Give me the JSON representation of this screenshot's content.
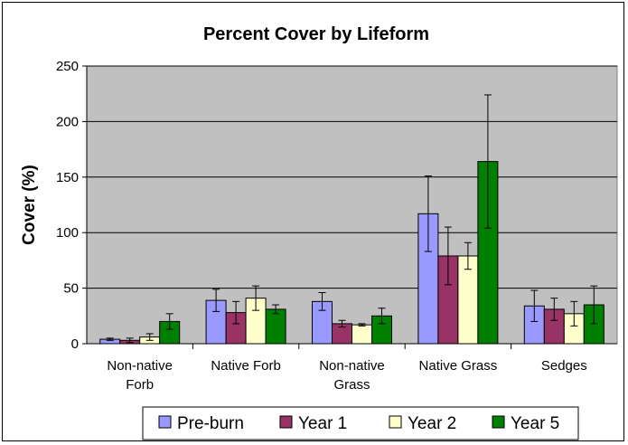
{
  "chart_data": {
    "type": "bar",
    "title": "Percent Cover by Lifeform",
    "xlabel": "",
    "ylabel": "Cover (%)",
    "ylim": [
      0,
      250
    ],
    "yticks": [
      "0",
      "50",
      "100",
      "150",
      "200",
      "250"
    ],
    "categories": [
      [
        "Non-native",
        "Forb"
      ],
      [
        "Native Forb"
      ],
      [
        "Non-native",
        "Grass"
      ],
      [
        "Native Grass"
      ],
      [
        "Sedges"
      ]
    ],
    "series": [
      {
        "name": "Pre-burn",
        "color": "#9999ff",
        "values": [
          4,
          39,
          38,
          117,
          34
        ],
        "errors": [
          1,
          10,
          8,
          34,
          14
        ]
      },
      {
        "name": "Year 1",
        "color": "#993366",
        "values": [
          3,
          28,
          18,
          79,
          31
        ],
        "errors": [
          2,
          10,
          3,
          26,
          10
        ]
      },
      {
        "name": "Year 2",
        "color": "#ffffcc",
        "values": [
          6,
          41,
          17,
          79,
          27
        ],
        "errors": [
          3,
          11,
          1,
          12,
          11
        ]
      },
      {
        "name": "Year 5",
        "color": "#008000",
        "values": [
          20,
          31,
          25,
          164,
          35
        ],
        "errors": [
          7,
          4,
          7,
          60,
          17
        ]
      }
    ],
    "grid": true,
    "plot_background": "#c0c0c0",
    "legend_position": "bottom"
  }
}
